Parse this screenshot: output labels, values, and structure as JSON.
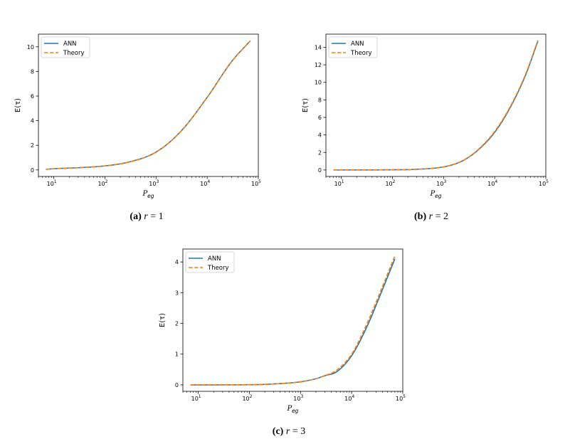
{
  "chart_data": [
    {
      "type": "line",
      "xscale": "log",
      "xlim": [
        5,
        100000
      ],
      "ylim": [
        -0.53,
        11.03
      ],
      "xlabel_base": "P",
      "xlabel_sub": "eg",
      "ylabel": "E(τ)",
      "yticks": [
        0,
        2,
        4,
        6,
        8,
        10
      ],
      "xticks": [
        {
          "value": 10,
          "base": "10",
          "exp": "1"
        },
        {
          "value": 100,
          "base": "10",
          "exp": "2"
        },
        {
          "value": 1000,
          "base": "10",
          "exp": "3"
        },
        {
          "value": 10000,
          "base": "10",
          "exp": "4"
        },
        {
          "value": 100000,
          "base": "10",
          "exp": "5"
        }
      ],
      "legend_position": "top-left",
      "series": [
        {
          "name": "ANN",
          "color": "#1f77b4",
          "style": "solid",
          "x": [
            7,
            10,
            30,
            100,
            300,
            1000,
            3000,
            10000,
            30000,
            70000
          ],
          "y": [
            0.05,
            0.1,
            0.18,
            0.33,
            0.65,
            1.45,
            3.1,
            5.9,
            8.8,
            10.5
          ]
        },
        {
          "name": "Theory",
          "color": "#ff7f0e",
          "style": "dashed",
          "x": [
            7,
            10,
            30,
            100,
            300,
            1000,
            3000,
            10000,
            30000,
            70000
          ],
          "y": [
            0.05,
            0.1,
            0.18,
            0.33,
            0.65,
            1.45,
            3.1,
            5.9,
            8.8,
            10.5
          ]
        }
      ],
      "caption": {
        "letter": "(a)",
        "var": "r",
        "rest": " = 1"
      }
    },
    {
      "type": "line",
      "xscale": "log",
      "xlim": [
        5,
        100000
      ],
      "ylim": [
        -0.74,
        15.5
      ],
      "xlabel_base": "P",
      "xlabel_sub": "eg",
      "ylabel": "E(τ)",
      "yticks": [
        0,
        2,
        4,
        6,
        8,
        10,
        12,
        14
      ],
      "xticks": [
        {
          "value": 10,
          "base": "10",
          "exp": "1"
        },
        {
          "value": 100,
          "base": "10",
          "exp": "2"
        },
        {
          "value": 1000,
          "base": "10",
          "exp": "3"
        },
        {
          "value": 10000,
          "base": "10",
          "exp": "4"
        },
        {
          "value": 100000,
          "base": "10",
          "exp": "5"
        }
      ],
      "legend_position": "top-left",
      "series": [
        {
          "name": "ANN",
          "color": "#1f77b4",
          "style": "solid",
          "x": [
            7,
            100,
            300,
            1000,
            2000,
            3000,
            5000,
            10000,
            20000,
            40000,
            70000
          ],
          "y": [
            0.0,
            0.02,
            0.08,
            0.35,
            0.85,
            1.4,
            2.4,
            4.3,
            7.1,
            10.8,
            14.7
          ]
        },
        {
          "name": "Theory",
          "color": "#ff7f0e",
          "style": "dashed",
          "x": [
            7,
            100,
            300,
            1000,
            2000,
            3000,
            5000,
            10000,
            20000,
            40000,
            70000
          ],
          "y": [
            0.0,
            0.02,
            0.08,
            0.35,
            0.87,
            1.42,
            2.45,
            4.4,
            7.2,
            10.9,
            14.8
          ]
        }
      ],
      "caption": {
        "letter": "(b)",
        "var": "r",
        "rest": " = 2"
      }
    },
    {
      "type": "line",
      "xscale": "log",
      "xlim": [
        5,
        100000
      ],
      "ylim": [
        -0.21,
        4.42
      ],
      "xlabel_base": "P",
      "xlabel_sub": "eg",
      "ylabel": "E(τ)",
      "yticks": [
        0,
        1,
        2,
        3,
        4
      ],
      "xticks": [
        {
          "value": 10,
          "base": "10",
          "exp": "1"
        },
        {
          "value": 100,
          "base": "10",
          "exp": "2"
        },
        {
          "value": 1000,
          "base": "10",
          "exp": "3"
        },
        {
          "value": 10000,
          "base": "10",
          "exp": "4"
        },
        {
          "value": 100000,
          "base": "10",
          "exp": "5"
        }
      ],
      "legend_position": "top-left",
      "series": [
        {
          "name": "ANN",
          "color": "#1f77b4",
          "style": "solid",
          "x": [
            7,
            100,
            300,
            1000,
            2000,
            3000,
            5000,
            10000,
            20000,
            40000,
            70000
          ],
          "y": [
            0.0,
            0.005,
            0.03,
            0.1,
            0.2,
            0.3,
            0.42,
            0.95,
            1.9,
            3.1,
            4.1
          ]
        },
        {
          "name": "Theory",
          "color": "#ff7f0e",
          "style": "dashed",
          "x": [
            7,
            100,
            300,
            1000,
            2000,
            3000,
            5000,
            10000,
            20000,
            40000,
            70000
          ],
          "y": [
            0.0,
            0.005,
            0.03,
            0.1,
            0.2,
            0.3,
            0.47,
            1.0,
            2.0,
            3.2,
            4.2
          ]
        }
      ],
      "caption": {
        "letter": "(c)",
        "var": "r",
        "rest": " = 3"
      }
    }
  ]
}
